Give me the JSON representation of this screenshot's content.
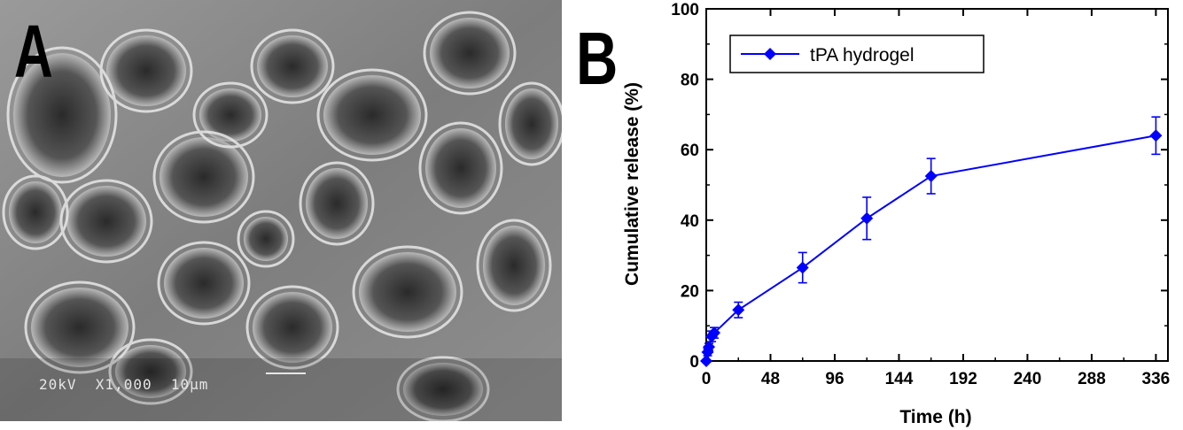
{
  "panel_a": {
    "letter": "A",
    "caption": "20kV  X1,000  10μm"
  },
  "panel_b": {
    "letter": "B"
  },
  "chart_data": {
    "type": "line",
    "xlabel": "Time (h)",
    "ylabel": "Cumulative release (%)",
    "xlim": [
      0,
      345
    ],
    "ylim": [
      0,
      100
    ],
    "xticks": [
      0,
      48,
      96,
      144,
      192,
      240,
      288,
      336
    ],
    "yticks": [
      0,
      20,
      40,
      60,
      80,
      100
    ],
    "grid": false,
    "legend_position": "top-left",
    "series": [
      {
        "name": "tPA hydrogel",
        "color": "#0000ff",
        "marker": "diamond",
        "x": [
          0,
          1,
          2,
          4,
          6,
          24,
          72,
          120,
          168,
          336
        ],
        "y": [
          0,
          2.5,
          4,
          7,
          8,
          14.5,
          26.5,
          40.5,
          52.5,
          64
        ],
        "error": [
          0,
          1,
          1,
          1.5,
          1.5,
          2.2,
          4.3,
          6,
          5,
          5.3
        ]
      }
    ]
  }
}
